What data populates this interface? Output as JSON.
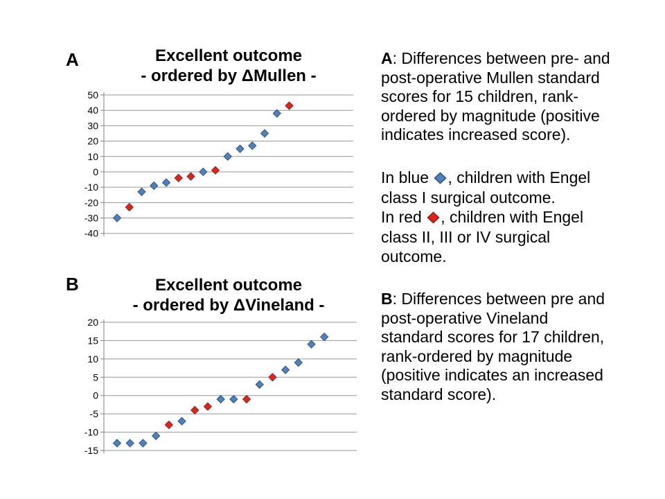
{
  "page": {
    "background": "#FFFFFF"
  },
  "colors": {
    "blue_fill": "#4F81BD",
    "blue_border": "#2F5481",
    "red_fill": "#E2231A",
    "red_border": "#8B2420",
    "gridline": "#969696",
    "axis": "#808080",
    "text": "#000000"
  },
  "chart_data": [
    {
      "panel_label": "A",
      "type": "scatter",
      "title": "Excellent outcome - ordered by ΔMullen -",
      "title_line1": "Excellent outcome",
      "title_line2": "- ordered by ΔMullen -",
      "xlabel": "",
      "ylabel": "",
      "ylim": [
        -40,
        50
      ],
      "yticks": [
        50,
        40,
        30,
        20,
        10,
        0,
        -10,
        -20,
        -30,
        -40
      ],
      "grid": true,
      "legend_position": "none",
      "points": [
        {
          "rank": 1,
          "value": -30,
          "group": "blue"
        },
        {
          "rank": 2,
          "value": -23,
          "group": "red"
        },
        {
          "rank": 3,
          "value": -13,
          "group": "blue"
        },
        {
          "rank": 4,
          "value": -9,
          "group": "blue"
        },
        {
          "rank": 5,
          "value": -7,
          "group": "blue"
        },
        {
          "rank": 6,
          "value": -4,
          "group": "red"
        },
        {
          "rank": 7,
          "value": -3,
          "group": "red"
        },
        {
          "rank": 8,
          "value": 0,
          "group": "blue"
        },
        {
          "rank": 9,
          "value": 1,
          "group": "red"
        },
        {
          "rank": 10,
          "value": 10,
          "group": "blue"
        },
        {
          "rank": 11,
          "value": 15,
          "group": "blue"
        },
        {
          "rank": 12,
          "value": 17,
          "group": "blue"
        },
        {
          "rank": 13,
          "value": 25,
          "group": "blue"
        },
        {
          "rank": 14,
          "value": 38,
          "group": "blue"
        },
        {
          "rank": 15,
          "value": 43,
          "group": "red"
        }
      ]
    },
    {
      "panel_label": "B",
      "type": "scatter",
      "title": "Excellent outcome - ordered by ΔVineland -",
      "title_line1": "Excellent outcome",
      "title_line2": "- ordered by ΔVineland -",
      "xlabel": "",
      "ylabel": "",
      "ylim": [
        -15,
        20
      ],
      "yticks": [
        20,
        15,
        10,
        5,
        0,
        -5,
        -10,
        -15
      ],
      "grid": true,
      "legend_position": "none",
      "points": [
        {
          "rank": 1,
          "value": -13,
          "group": "blue"
        },
        {
          "rank": 2,
          "value": -13,
          "group": "blue"
        },
        {
          "rank": 3,
          "value": -13,
          "group": "blue"
        },
        {
          "rank": 4,
          "value": -11,
          "group": "blue"
        },
        {
          "rank": 5,
          "value": -8,
          "group": "red"
        },
        {
          "rank": 6,
          "value": -7,
          "group": "blue"
        },
        {
          "rank": 7,
          "value": -4,
          "group": "red"
        },
        {
          "rank": 8,
          "value": -3,
          "group": "red"
        },
        {
          "rank": 9,
          "value": -1,
          "group": "blue"
        },
        {
          "rank": 10,
          "value": -1,
          "group": "blue"
        },
        {
          "rank": 11,
          "value": -1,
          "group": "red"
        },
        {
          "rank": 12,
          "value": 3,
          "group": "blue"
        },
        {
          "rank": 13,
          "value": 5,
          "group": "red"
        },
        {
          "rank": 14,
          "value": 7,
          "group": "blue"
        },
        {
          "rank": 15,
          "value": 9,
          "group": "blue"
        },
        {
          "rank": 16,
          "value": 14,
          "group": "blue"
        },
        {
          "rank": 17,
          "value": 16,
          "group": "blue"
        }
      ]
    }
  ],
  "caption": {
    "paragraphs": [
      {
        "name": "caption-a",
        "lines": [
          [
            {
              "t": "A",
              "b": 1
            },
            {
              "t": ": Differences between pre- and"
            }
          ],
          [
            {
              "t": "post-operative Mullen standard"
            }
          ],
          [
            {
              "t": "scores for 15 children, rank-"
            }
          ],
          [
            {
              "t": "ordered by magnitude (positive"
            }
          ],
          [
            {
              "t": "indicates increased score)."
            }
          ]
        ]
      },
      {
        "name": "caption-legend",
        "lines": [
          [
            {
              "t": "In blue "
            },
            {
              "icon": "blue-diamond"
            },
            {
              "t": ", children with Engel"
            }
          ],
          [
            {
              "t": "class I surgical outcome."
            }
          ],
          [
            {
              "t": "In red "
            },
            {
              "icon": "red-diamond"
            },
            {
              "t": ", children with Engel"
            }
          ],
          [
            {
              "t": "class II, III or IV surgical"
            }
          ],
          [
            {
              "t": "outcome."
            }
          ]
        ]
      },
      {
        "name": "caption-b",
        "lines": [
          [
            {
              "t": "B",
              "b": 1
            },
            {
              "t": ": Differences between pre and"
            }
          ],
          [
            {
              "t": "post-operative Vineland"
            }
          ],
          [
            {
              "t": "standard scores for 17 children,"
            }
          ],
          [
            {
              "t": "rank-ordered by magnitude"
            }
          ],
          [
            {
              "t": "(positive indicates an increased"
            }
          ],
          [
            {
              "t": "standard score)."
            }
          ]
        ]
      }
    ]
  }
}
